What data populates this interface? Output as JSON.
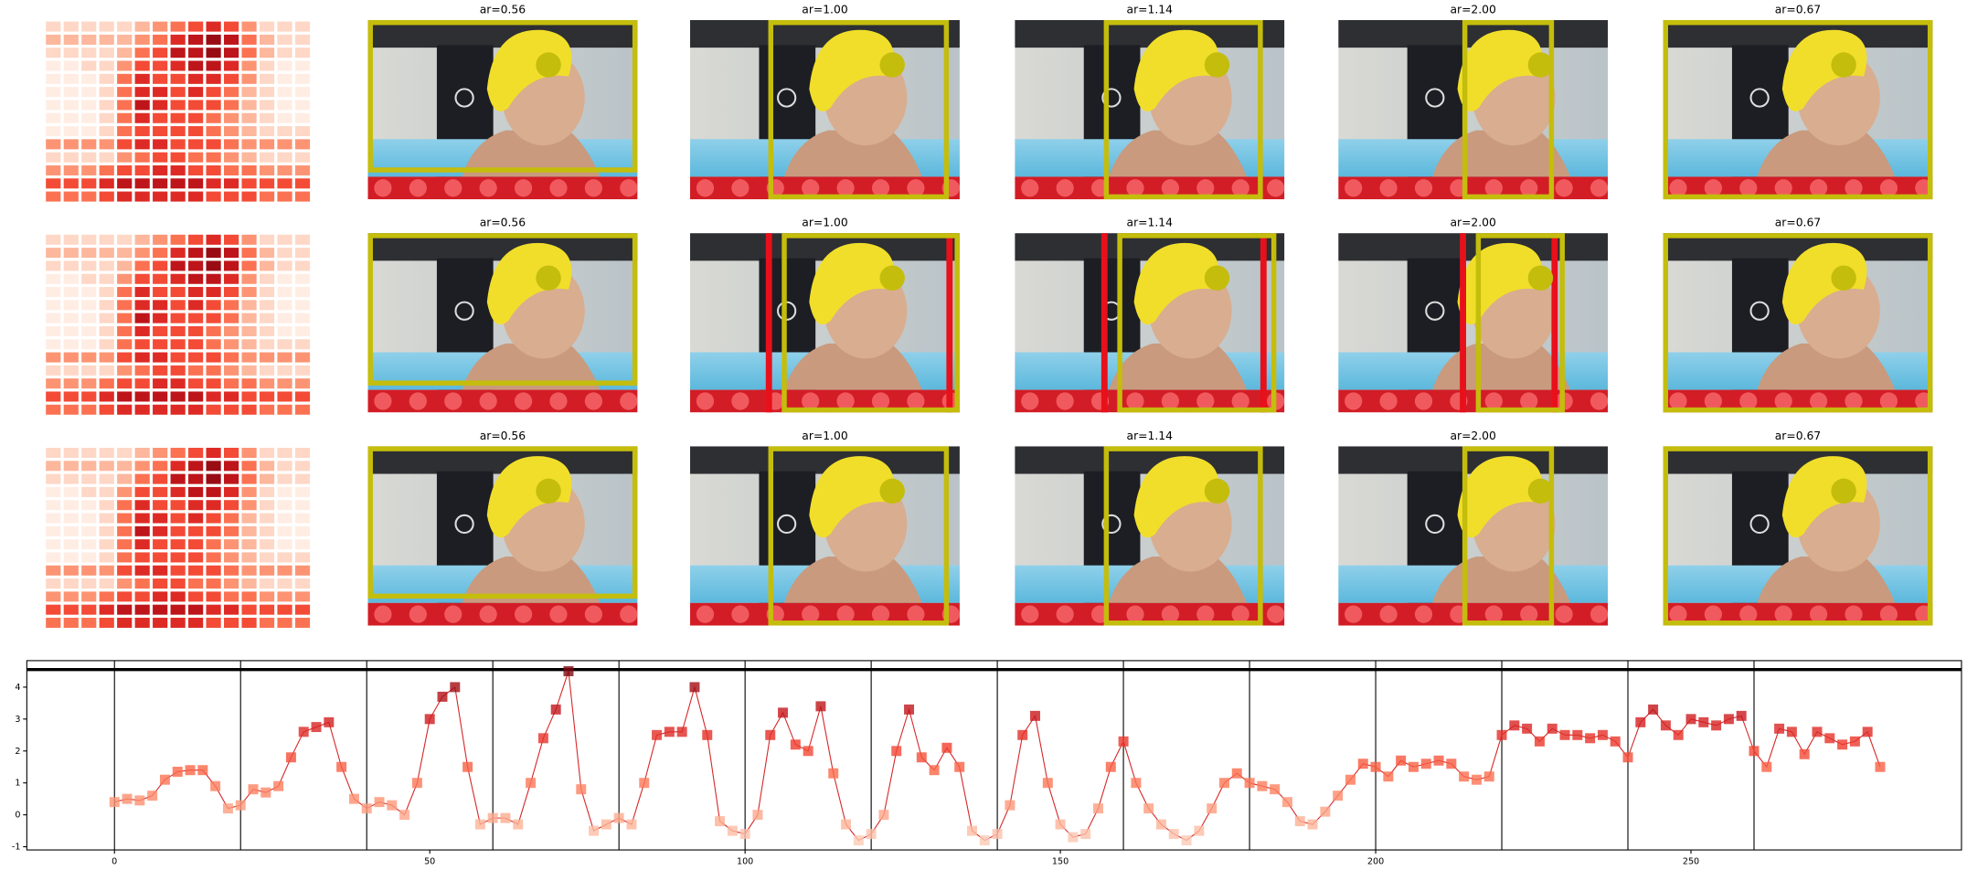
{
  "panels": {
    "titles": [
      "ar=0.56",
      "ar=1.00",
      "ar=1.14",
      "ar=2.00",
      "ar=0.67"
    ],
    "heatmap": [
      [
        1,
        1,
        1,
        1,
        1,
        2,
        3,
        4,
        5,
        6,
        5,
        3,
        1,
        1,
        1
      ],
      [
        2,
        2,
        2,
        2,
        2,
        3,
        4,
        6,
        7,
        8,
        7,
        4,
        2,
        1,
        1
      ],
      [
        1,
        1,
        1,
        1,
        2,
        4,
        5,
        7,
        7,
        8,
        7,
        4,
        2,
        1,
        1
      ],
      [
        0,
        0,
        1,
        1,
        3,
        5,
        5,
        6,
        7,
        7,
        6,
        3,
        1,
        0,
        0
      ],
      [
        0,
        0,
        0,
        1,
        4,
        6,
        5,
        5,
        6,
        6,
        5,
        3,
        1,
        0,
        0
      ],
      [
        0,
        0,
        0,
        1,
        4,
        6,
        6,
        5,
        6,
        5,
        4,
        2,
        1,
        0,
        0
      ],
      [
        0,
        0,
        0,
        1,
        4,
        7,
        6,
        5,
        5,
        5,
        4,
        2,
        1,
        0,
        0
      ],
      [
        0,
        0,
        0,
        1,
        4,
        6,
        5,
        5,
        5,
        4,
        3,
        2,
        1,
        0,
        0
      ],
      [
        0,
        0,
        0,
        1,
        4,
        5,
        5,
        5,
        5,
        4,
        3,
        2,
        1,
        1,
        1
      ],
      [
        3,
        3,
        3,
        3,
        5,
        6,
        6,
        5,
        5,
        5,
        4,
        3,
        3,
        3,
        3
      ],
      [
        1,
        1,
        1,
        1,
        3,
        4,
        5,
        5,
        4,
        4,
        3,
        2,
        1,
        1,
        1
      ],
      [
        3,
        3,
        3,
        4,
        5,
        5,
        6,
        6,
        5,
        5,
        4,
        4,
        3,
        3,
        3
      ],
      [
        5,
        5,
        5,
        6,
        7,
        7,
        7,
        7,
        7,
        6,
        6,
        5,
        5,
        5,
        5
      ],
      [
        4,
        4,
        4,
        5,
        6,
        6,
        6,
        6,
        6,
        5,
        5,
        5,
        4,
        4,
        4
      ]
    ]
  },
  "chart_data": {
    "type": "line",
    "color": "#d62728",
    "cmap": "Reds",
    "x": [
      0,
      2,
      4,
      6,
      8,
      10,
      12,
      14,
      16,
      18,
      20,
      22,
      24,
      26,
      28,
      30,
      32,
      34,
      36,
      38,
      40,
      42,
      44,
      46,
      48,
      50,
      52,
      54,
      56,
      58,
      60,
      62,
      64,
      66,
      68,
      70,
      72,
      74,
      76,
      78,
      80,
      82,
      84,
      86,
      88,
      90,
      92,
      94,
      96,
      98,
      100,
      102,
      104,
      106,
      108,
      110,
      112,
      114,
      116,
      118,
      120,
      122,
      124,
      126,
      128,
      130,
      132,
      134,
      136,
      138,
      140,
      142,
      144,
      146,
      148,
      150,
      152,
      154,
      156,
      158,
      160,
      162,
      164,
      166,
      168,
      170,
      172,
      174,
      176,
      178,
      180,
      182,
      184,
      186,
      188,
      190,
      192,
      194,
      196,
      198,
      200,
      202,
      204,
      206,
      208,
      210,
      212,
      214,
      216,
      218,
      220,
      222,
      224,
      226,
      228,
      230,
      232,
      234,
      236,
      238,
      240,
      242,
      244,
      246,
      248,
      250,
      252,
      254,
      256,
      258,
      260,
      262,
      264,
      266,
      268,
      270,
      272,
      274,
      276,
      278,
      280
    ],
    "values": [
      0.4,
      0.5,
      0.45,
      0.6,
      1.1,
      1.35,
      1.4,
      1.4,
      0.9,
      0.2,
      0.3,
      0.8,
      0.7,
      0.9,
      1.8,
      2.6,
      2.75,
      2.9,
      1.5,
      0.5,
      0.2,
      0.4,
      0.3,
      0.0,
      1.0,
      3.0,
      3.7,
      4.0,
      1.5,
      -0.3,
      -0.1,
      -0.1,
      -0.3,
      1.0,
      2.4,
      3.3,
      4.5,
      0.8,
      -0.5,
      -0.3,
      -0.1,
      -0.3,
      1.0,
      2.5,
      2.6,
      2.6,
      4.0,
      2.5,
      -0.2,
      -0.5,
      -0.6,
      0.0,
      2.5,
      3.2,
      2.2,
      2.0,
      3.4,
      1.3,
      -0.3,
      -0.8,
      -0.6,
      0.0,
      2.0,
      3.3,
      1.8,
      1.4,
      2.1,
      1.5,
      -0.5,
      -0.8,
      -0.6,
      0.3,
      2.5,
      3.1,
      1.0,
      -0.3,
      -0.7,
      -0.6,
      0.2,
      1.5,
      2.3,
      1.0,
      0.2,
      -0.3,
      -0.6,
      -0.8,
      -0.5,
      0.2,
      1.0,
      1.3,
      1.0,
      0.9,
      0.8,
      0.4,
      -0.2,
      -0.3,
      0.1,
      0.6,
      1.1,
      1.6,
      1.5,
      1.2,
      1.7,
      1.5,
      1.6,
      1.7,
      1.6,
      1.2,
      1.1,
      1.2,
      2.5,
      2.8,
      2.7,
      2.3,
      2.7,
      2.5,
      2.5,
      2.4,
      2.5,
      2.3,
      1.8,
      2.9,
      3.3,
      2.8,
      2.5,
      3.0,
      2.9,
      2.8,
      3.0,
      3.1,
      2.0,
      1.5,
      2.7,
      2.6,
      1.9,
      2.6,
      2.4,
      2.2,
      2.3,
      2.6,
      1.5
    ],
    "xlim": [
      -13.9,
      292.9
    ],
    "ylim": [
      -1.1,
      4.83
    ],
    "xticks": [
      0,
      50,
      100,
      150,
      200,
      250
    ],
    "yticks": [
      -1,
      0,
      1,
      2,
      3,
      4
    ],
    "vlines": [
      0,
      20,
      40,
      60,
      80,
      100,
      120,
      140,
      160,
      180,
      200,
      220,
      240,
      260
    ],
    "hline": 4.55
  }
}
